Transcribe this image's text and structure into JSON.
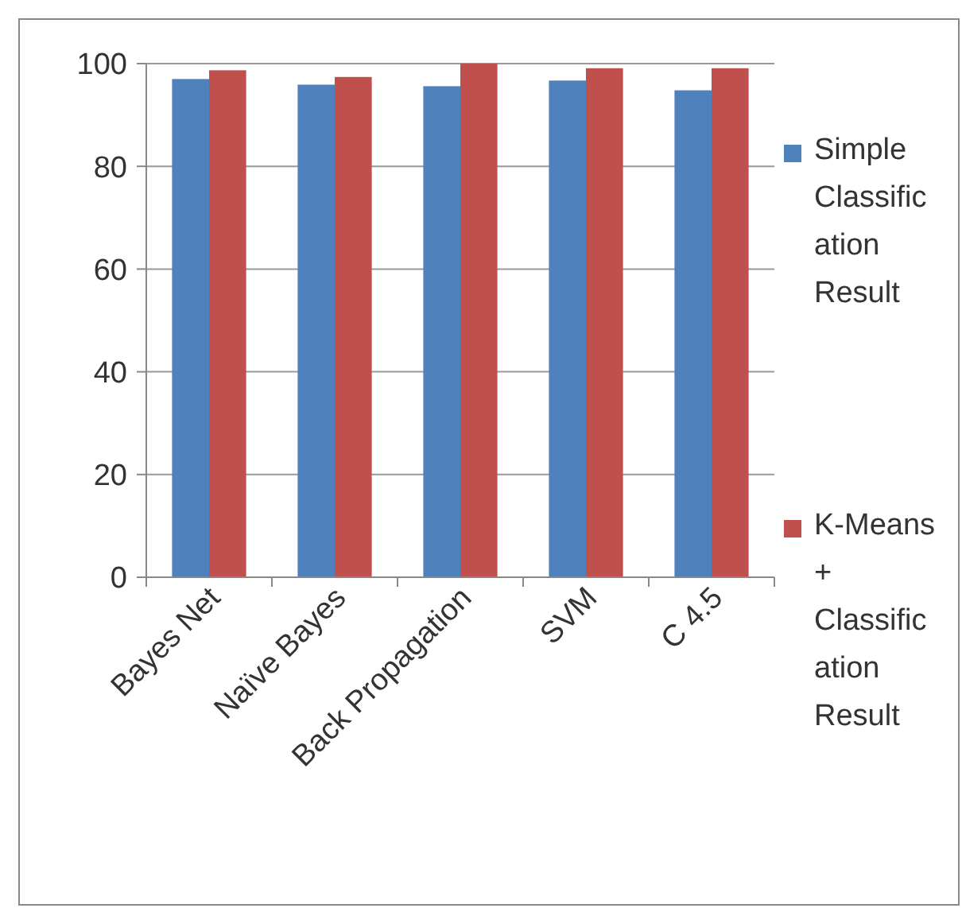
{
  "chart_data": {
    "type": "bar",
    "categories": [
      "Bayes Net",
      "Naïve Bayes",
      "Back Propagation",
      "SVM",
      "C 4.5"
    ],
    "series": [
      {
        "name": "Simple Classification Result",
        "color": "#4f81bd",
        "values": [
          97.0,
          95.9,
          95.6,
          96.7,
          94.8
        ]
      },
      {
        "name": "K-Means + Classification Result",
        "color": "#c0504d",
        "values": [
          98.7,
          97.4,
          100,
          99.1,
          99.1
        ]
      }
    ],
    "ylim": [
      0,
      100
    ],
    "yticks": [
      0,
      20,
      40,
      60,
      80,
      100
    ],
    "grid": "y",
    "legend": "right"
  }
}
